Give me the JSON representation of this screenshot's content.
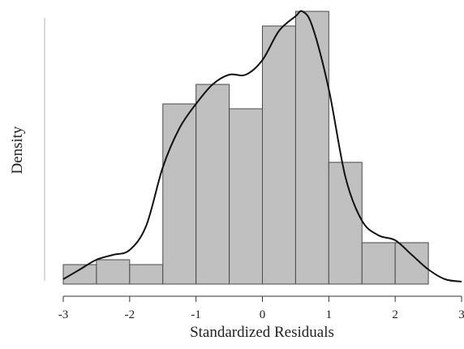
{
  "chart_data": {
    "type": "bar",
    "subtype": "histogram-with-density-curve",
    "title": "",
    "xlabel": "Standardized Residuals",
    "ylabel": "Density",
    "xlim": [
      -3,
      3
    ],
    "ylim": [
      0,
      0.56
    ],
    "x_ticks": [
      -3,
      -2,
      -1,
      0,
      1,
      2,
      3
    ],
    "y_ticks_shown": false,
    "grid": false,
    "legend": "none",
    "bin_width": 0.5,
    "bins": [
      {
        "start": -3.0,
        "end": -2.5,
        "density": 0.04
      },
      {
        "start": -2.5,
        "end": -2.0,
        "density": 0.05
      },
      {
        "start": -2.0,
        "end": -1.5,
        "density": 0.04
      },
      {
        "start": -1.5,
        "end": -1.0,
        "density": 0.37
      },
      {
        "start": -1.0,
        "end": -0.5,
        "density": 0.41
      },
      {
        "start": -0.5,
        "end": 0.0,
        "density": 0.36
      },
      {
        "start": 0.0,
        "end": 0.5,
        "density": 0.53
      },
      {
        "start": 0.5,
        "end": 1.0,
        "density": 0.56
      },
      {
        "start": 1.0,
        "end": 1.5,
        "density": 0.25
      },
      {
        "start": 1.5,
        "end": 2.0,
        "density": 0.085
      },
      {
        "start": 2.0,
        "end": 2.5,
        "density": 0.085
      }
    ],
    "density_curve": {
      "x": [
        -3.0,
        -2.75,
        -2.5,
        -2.25,
        -2.0,
        -1.75,
        -1.5,
        -1.25,
        -1.0,
        -0.75,
        -0.5,
        -0.25,
        0.0,
        0.25,
        0.5,
        0.6,
        0.75,
        1.0,
        1.25,
        1.5,
        1.75,
        2.0,
        2.25,
        2.5,
        2.75,
        3.0
      ],
      "y": [
        0.01,
        0.03,
        0.05,
        0.06,
        0.07,
        0.12,
        0.24,
        0.32,
        0.37,
        0.41,
        0.43,
        0.43,
        0.46,
        0.52,
        0.55,
        0.56,
        0.53,
        0.4,
        0.22,
        0.13,
        0.1,
        0.09,
        0.06,
        0.03,
        0.01,
        0.005
      ]
    },
    "colors": {
      "bar_fill": "#c0c0c0",
      "bar_stroke": "#4a4a4a",
      "curve": "#111111",
      "axis": "#333333",
      "y_axis_line": "#b5b5b5"
    }
  }
}
